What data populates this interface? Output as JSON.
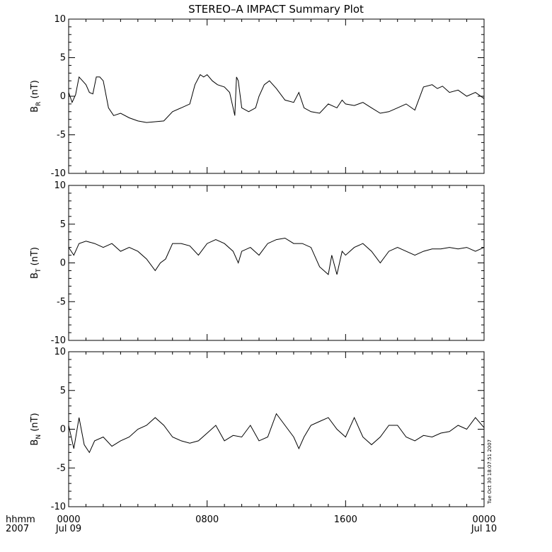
{
  "title": "STEREO–A IMPACT Summary Plot",
  "timestamp_label": "Tue Oct 30 18:07:51 2007",
  "time_axis": {
    "row1_label": "hhmm",
    "row2_label": "2007",
    "ticks": [
      {
        "hours": 0,
        "hhmm": "0000",
        "date": "Jul 09"
      },
      {
        "hours": 8,
        "hhmm": "0800",
        "date": ""
      },
      {
        "hours": 16,
        "hhmm": "1600",
        "date": ""
      },
      {
        "hours": 24,
        "hhmm": "0000",
        "date": "Jul 10"
      }
    ],
    "xlim_hours": [
      0,
      24
    ]
  },
  "chart_data": [
    {
      "type": "line",
      "ylabel_main": "B",
      "ylabel_sub": "R",
      "ylabel_unit": " (nT)",
      "ylim": [
        -10,
        10
      ],
      "yticks": [
        -10,
        -5,
        0,
        5,
        10
      ],
      "x_hours": [
        0,
        0.2,
        0.4,
        0.6,
        0.8,
        1.0,
        1.2,
        1.4,
        1.6,
        1.8,
        2.0,
        2.3,
        2.6,
        3.0,
        3.5,
        4.0,
        4.5,
        5.0,
        5.5,
        6.0,
        6.5,
        7.0,
        7.3,
        7.6,
        7.8,
        8.0,
        8.3,
        8.6,
        9.0,
        9.3,
        9.6,
        9.7,
        9.8,
        10.0,
        10.4,
        10.8,
        11.0,
        11.3,
        11.6,
        12.0,
        12.5,
        13.0,
        13.3,
        13.6,
        14.0,
        14.5,
        15.0,
        15.5,
        15.8,
        16.0,
        16.5,
        17.0,
        17.5,
        18.0,
        18.5,
        19.0,
        19.5,
        20.0,
        20.5,
        21.0,
        21.3,
        21.6,
        22.0,
        22.5,
        23.0,
        23.5,
        24.0
      ],
      "values": [
        0.5,
        -0.8,
        0.2,
        2.5,
        2.0,
        1.5,
        0.5,
        0.3,
        2.5,
        2.5,
        2.0,
        -1.5,
        -2.5,
        -2.2,
        -2.8,
        -3.2,
        -3.4,
        -3.3,
        -3.2,
        -2.0,
        -1.5,
        -1.0,
        1.5,
        2.8,
        2.5,
        2.8,
        2.0,
        1.5,
        1.2,
        0.5,
        -2.5,
        2.5,
        2.0,
        -1.5,
        -2.0,
        -1.5,
        0.0,
        1.5,
        2.0,
        1.0,
        -0.5,
        -0.8,
        0.5,
        -1.5,
        -2.0,
        -2.2,
        -1.0,
        -1.5,
        -0.5,
        -1.0,
        -1.2,
        -0.8,
        -1.5,
        -2.2,
        -2.0,
        -1.5,
        -1.0,
        -1.8,
        1.2,
        1.5,
        1.0,
        1.3,
        0.5,
        0.8,
        0.0,
        0.5,
        -0.3
      ]
    },
    {
      "type": "line",
      "ylabel_main": "B",
      "ylabel_sub": "T",
      "ylabel_unit": " (nT)",
      "ylim": [
        -10,
        10
      ],
      "yticks": [
        -10,
        -5,
        0,
        5,
        10
      ],
      "x_hours": [
        0,
        0.3,
        0.6,
        1.0,
        1.5,
        2.0,
        2.5,
        3.0,
        3.5,
        4.0,
        4.5,
        5.0,
        5.3,
        5.6,
        6.0,
        6.5,
        7.0,
        7.5,
        8.0,
        8.5,
        9.0,
        9.5,
        9.8,
        10.0,
        10.5,
        11.0,
        11.5,
        12.0,
        12.5,
        13.0,
        13.5,
        14.0,
        14.5,
        15.0,
        15.2,
        15.5,
        15.8,
        16.0,
        16.5,
        17.0,
        17.5,
        18.0,
        18.5,
        19.0,
        19.5,
        20.0,
        20.5,
        21.0,
        21.5,
        22.0,
        22.5,
        23.0,
        23.5,
        24.0
      ],
      "values": [
        2.0,
        1.0,
        2.5,
        2.8,
        2.5,
        2.0,
        2.5,
        1.5,
        2.0,
        1.5,
        0.5,
        -1.0,
        0.0,
        0.5,
        2.5,
        2.5,
        2.2,
        1.0,
        2.5,
        3.0,
        2.5,
        1.5,
        0.0,
        1.5,
        2.0,
        1.0,
        2.5,
        3.0,
        3.2,
        2.5,
        2.5,
        2.0,
        -0.5,
        -1.5,
        1.0,
        -1.5,
        1.5,
        1.0,
        2.0,
        2.5,
        1.5,
        0.0,
        1.5,
        2.0,
        1.5,
        1.0,
        1.5,
        1.8,
        1.8,
        2.0,
        1.8,
        2.0,
        1.5,
        2.0
      ]
    },
    {
      "type": "line",
      "ylabel_main": "B",
      "ylabel_sub": "N",
      "ylabel_unit": " (nT)",
      "ylim": [
        -10,
        10
      ],
      "yticks": [
        -10,
        -5,
        0,
        5,
        10
      ],
      "x_hours": [
        0,
        0.3,
        0.6,
        0.9,
        1.2,
        1.5,
        2.0,
        2.5,
        3.0,
        3.5,
        4.0,
        4.5,
        5.0,
        5.5,
        6.0,
        6.5,
        7.0,
        7.5,
        8.0,
        8.5,
        9.0,
        9.5,
        10.0,
        10.5,
        11.0,
        11.5,
        12.0,
        12.5,
        13.0,
        13.3,
        13.6,
        14.0,
        14.5,
        15.0,
        15.5,
        16.0,
        16.5,
        17.0,
        17.5,
        18.0,
        18.5,
        19.0,
        19.5,
        20.0,
        20.5,
        21.0,
        21.5,
        22.0,
        22.5,
        23.0,
        23.5,
        24.0
      ],
      "values": [
        0.5,
        -2.5,
        1.5,
        -2.0,
        -3.0,
        -1.5,
        -1.0,
        -2.2,
        -1.5,
        -1.0,
        0.0,
        0.5,
        1.5,
        0.5,
        -1.0,
        -1.5,
        -1.8,
        -1.5,
        -0.5,
        0.5,
        -1.5,
        -0.8,
        -1.0,
        0.5,
        -1.5,
        -1.0,
        2.0,
        0.5,
        -1.0,
        -2.5,
        -1.0,
        0.5,
        1.0,
        1.5,
        0.0,
        -1.0,
        1.5,
        -1.0,
        -2.0,
        -1.0,
        0.5,
        0.5,
        -1.0,
        -1.5,
        -0.8,
        -1.0,
        -0.5,
        -0.3,
        0.5,
        0.0,
        1.5,
        0.2
      ]
    }
  ]
}
